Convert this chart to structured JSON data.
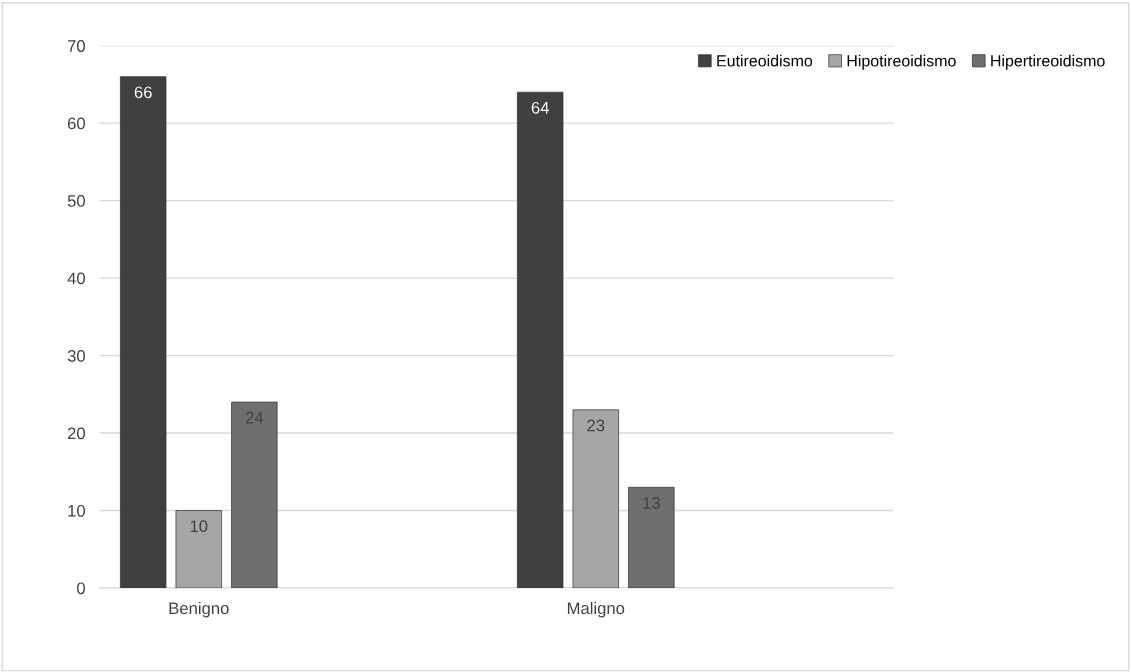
{
  "chart_data": {
    "type": "bar",
    "categories": [
      "Benigno",
      "Maligno"
    ],
    "series": [
      {
        "name": "Eutireoidismo",
        "color": "#404040",
        "values": [
          66,
          64
        ]
      },
      {
        "name": "Hipotireoidismo",
        "color": "#a6a6a6",
        "values": [
          10,
          23
        ]
      },
      {
        "name": "Hipertireoidismo",
        "color": "#6f6f6f",
        "values": [
          24,
          13
        ]
      }
    ],
    "ylim": [
      0,
      70
    ],
    "yticks": [
      0,
      10,
      20,
      30,
      40,
      50,
      60,
      70
    ],
    "grid": "y",
    "legend": "top right",
    "data_labels": true
  }
}
